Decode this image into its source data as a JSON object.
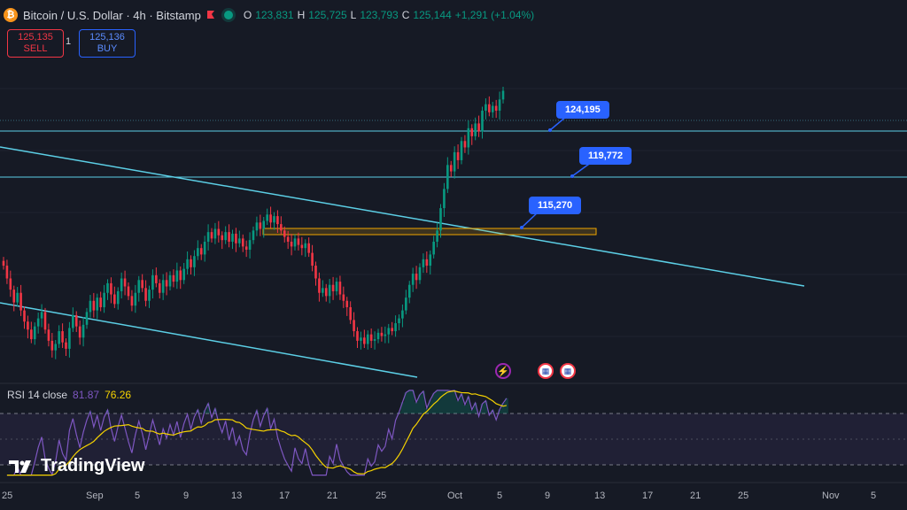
{
  "header": {
    "symbol_icon": "bitcoin-icon",
    "title": "Bitcoin / U.S. Dollar · 4h · Bitstamp",
    "ohlc": [
      {
        "k": "O",
        "v": "123,831"
      },
      {
        "k": "H",
        "v": "125,725"
      },
      {
        "k": "L",
        "v": "123,793"
      },
      {
        "k": "C",
        "v": "125,144"
      }
    ],
    "change": "+1,291 (+1.04%)"
  },
  "trade": {
    "sell_price": "125,135",
    "sell_label": "SELL",
    "quantity": "1",
    "buy_price": "125,136",
    "buy_label": "BUY"
  },
  "callouts": {
    "a": "124,195",
    "b": "119,772",
    "c": "115,270"
  },
  "rsi": {
    "label": "RSI 14 close",
    "value": "81.87",
    "ma": "76.26"
  },
  "x_axis": [
    "25",
    "Sep",
    "5",
    "9",
    "13",
    "17",
    "21",
    "25",
    "Oct",
    "5",
    "9",
    "13",
    "17",
    "21",
    "25",
    "Nov",
    "5"
  ],
  "brand": "TradingView",
  "colors": {
    "up": "#089981",
    "down": "#f23645",
    "channel": "#5ccfe6",
    "zone": "#f0a500",
    "rsi": "#7e57c2",
    "rsi_ma": "#f5d200",
    "callout": "#2962ff"
  },
  "chart_data": {
    "type": "candlestick",
    "title": "Bitcoin / U.S. Dollar · 4h · Bitstamp",
    "horizontal_levels": [
      124195,
      119772,
      115270
    ],
    "price_range": [
      107000,
      127500
    ],
    "rsi": {
      "name": "RSI 14 close",
      "last": 81.87,
      "ma_last": 76.26
    },
    "series": [
      {
        "name": "BTCUSD",
        "close": [
          114200,
          113400,
          112700,
          111900,
          112500,
          111400,
          110700,
          110200,
          109600,
          110400,
          110900,
          111300,
          110200,
          109500,
          108900,
          109300,
          110100,
          109400,
          109000,
          110300,
          111100,
          110400,
          109700,
          110500,
          111300,
          112000,
          111400,
          112200,
          111600,
          112500,
          113100,
          112400,
          111800,
          112600,
          113400,
          112900,
          112300,
          111700,
          112500,
          113300,
          112800,
          112000,
          112700,
          113600,
          113100,
          112500,
          113300,
          112900,
          113600,
          113200,
          113900,
          113300,
          114000,
          114600,
          114100,
          114800,
          115300,
          114900,
          115700,
          116300,
          115900,
          116500,
          116100,
          115800,
          116300,
          115700,
          116200,
          115600,
          115900,
          115400,
          115200,
          115800,
          116400,
          116900,
          116500,
          117000,
          117400,
          116900,
          117300,
          116800,
          116400,
          116000,
          115700,
          115400,
          115900,
          115500,
          115300,
          115600,
          115000,
          114200,
          113400,
          112500,
          112800,
          112300,
          113000,
          112600,
          113200,
          112400,
          112000,
          111600,
          110800,
          110100,
          109500,
          109700,
          109300,
          109900,
          109500,
          109600,
          110000,
          109800,
          109900,
          110300,
          110100,
          110600,
          110900,
          111400,
          112200,
          113000,
          113700,
          113300,
          114100,
          114600,
          114200,
          114900,
          115700,
          116400,
          117800,
          119000,
          120500,
          120100,
          121300,
          120800,
          122000,
          121600,
          122800,
          122300,
          123100,
          122600,
          123900,
          124300,
          123800,
          124200,
          123900,
          124600,
          125144
        ]
      }
    ]
  }
}
